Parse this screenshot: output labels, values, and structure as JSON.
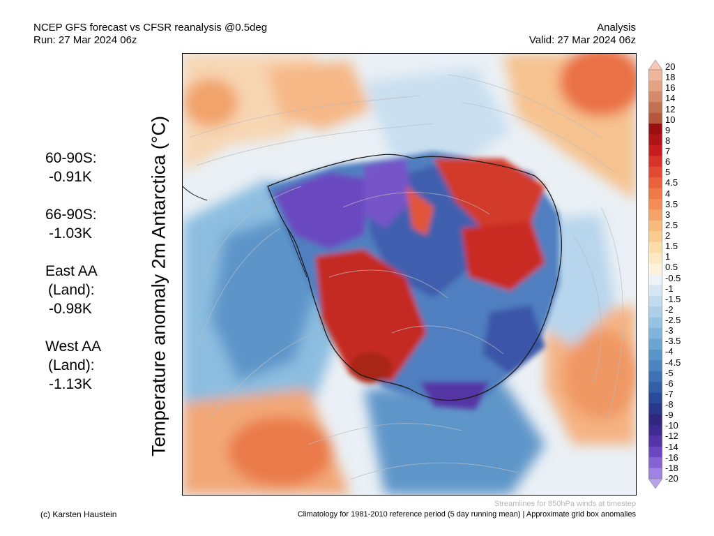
{
  "header": {
    "line1_left": "NCEP GFS forecast vs CFSR reanalysis @0.5deg",
    "line2_left": "Run: 27 Mar 2024 06z",
    "line1_right": "Analysis",
    "line2_right": "Valid: 27 Mar 2024 06z"
  },
  "y_axis_label": "Temperature anomaly 2m Antarctica (°C)",
  "stats": [
    {
      "name": "60-90S:",
      "value": "-0.91K"
    },
    {
      "name": "66-90S:",
      "value": "-1.03K"
    },
    {
      "name": "East AA",
      "sub": "(Land):",
      "value": "-0.98K"
    },
    {
      "name": "West AA",
      "sub": "(Land):",
      "value": "-1.13K"
    }
  ],
  "colorbar": {
    "ticks": [
      "20",
      "18",
      "16",
      "14",
      "12",
      "10",
      "9",
      "8",
      "7",
      "6",
      "5",
      "4.5",
      "4",
      "3.5",
      "3",
      "2.5",
      "2",
      "1.5",
      "1",
      "0.5",
      "-0.5",
      "-1",
      "-1.5",
      "-2",
      "-2.5",
      "-3",
      "-3.5",
      "-4",
      "-4.5",
      "-5",
      "-6",
      "-7",
      "-8",
      "-9",
      "-10",
      "-12",
      "-14",
      "-16",
      "-18",
      "-20"
    ],
    "colors": [
      "#f7c9b4",
      "#eeb79d",
      "#e3a383",
      "#d48b6a",
      "#c27152",
      "#b3583c",
      "#9a0f12",
      "#b11418",
      "#c81d20",
      "#d8322a",
      "#e24a33",
      "#ea613e",
      "#ef7848",
      "#f28d57",
      "#f4a468",
      "#f6ba7c",
      "#f8cc91",
      "#fadca8",
      "#fce8c2",
      "#fdf3dc",
      "#eef3f8",
      "#d6e6f2",
      "#c2dbee",
      "#add0e8",
      "#97c3e2",
      "#81b4da",
      "#6ca5d2",
      "#5995c9",
      "#4b84bf",
      "#3f71b4",
      "#345ea8",
      "#2b4a9a",
      "#29388b",
      "#30287e",
      "#402a92",
      "#5533a8",
      "#6b48c0",
      "#8463d2",
      "#9e83e0",
      "#b9a3ec"
    ]
  },
  "footer": {
    "credit": "(c) Karsten Haustein",
    "streamlines_note": "Streamlines for 850hPa winds at timestep",
    "climatology_note": "Climatology for 1981-2010 reference period (5 day running mean) | Approximate grid box anomalies"
  }
}
